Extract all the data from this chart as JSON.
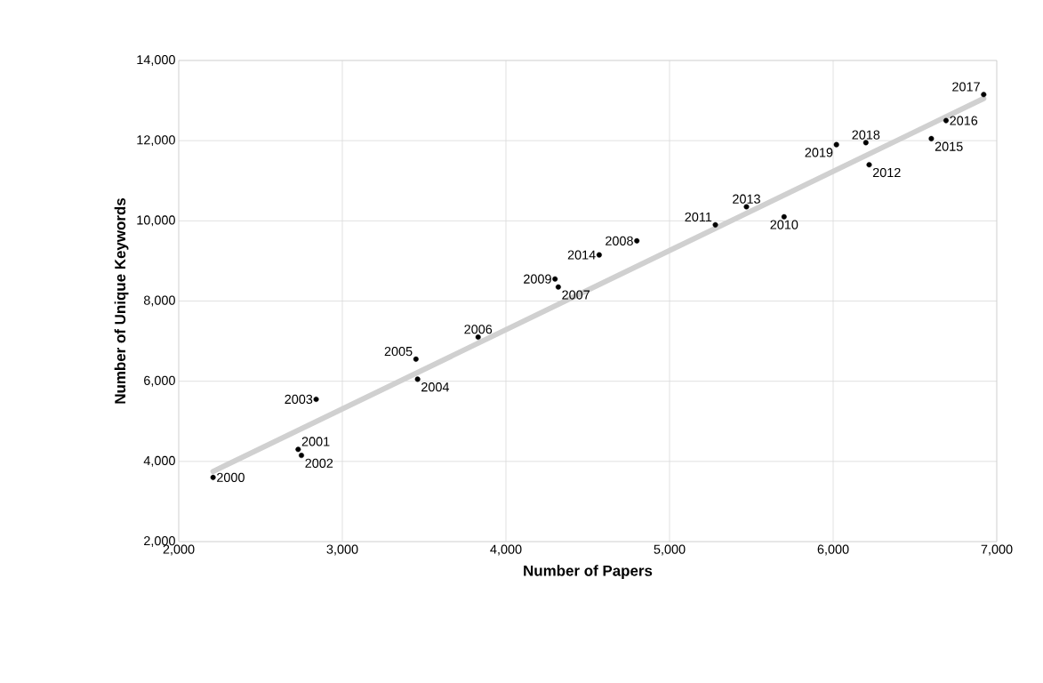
{
  "chart_data": {
    "type": "scatter",
    "xlabel": "Number of Papers",
    "ylabel": "Number of Unique Keywords",
    "xlim": [
      2000,
      7000
    ],
    "ylim": [
      2000,
      14000
    ],
    "xticks": [
      {
        "value": 2000,
        "label": "2,000"
      },
      {
        "value": 3000,
        "label": "3,000"
      },
      {
        "value": 4000,
        "label": "4,000"
      },
      {
        "value": 5000,
        "label": "5,000"
      },
      {
        "value": 6000,
        "label": "6,000"
      },
      {
        "value": 7000,
        "label": "7,000"
      }
    ],
    "yticks": [
      {
        "value": 2000,
        "label": "2,000"
      },
      {
        "value": 4000,
        "label": "4,000"
      },
      {
        "value": 6000,
        "label": "6,000"
      },
      {
        "value": 8000,
        "label": "8,000"
      },
      {
        "value": 10000,
        "label": "10,000"
      },
      {
        "value": 12000,
        "label": "12,000"
      },
      {
        "value": 14000,
        "label": "14,000"
      }
    ],
    "grid": true,
    "marker": "circle",
    "series": [
      {
        "type": "line",
        "marker": "none",
        "color": "#d0d0d0",
        "x": [
          2210,
          6920
        ],
        "values": [
          3750,
          13050
        ]
      },
      {
        "color": "#000000",
        "x": [
          2210,
          2730,
          2750,
          2840,
          3460,
          3450,
          3830,
          4320,
          4800,
          4300,
          5700,
          5280,
          6220,
          5470,
          4570,
          6600,
          6690,
          6920,
          6200,
          6020
        ],
        "values": [
          3600,
          4300,
          4150,
          5550,
          6050,
          6550,
          7100,
          8350,
          9500,
          8550,
          10100,
          9900,
          11400,
          10350,
          9150,
          12050,
          12500,
          13150,
          11950,
          11900
        ]
      }
    ],
    "annotations": [
      {
        "text": "2000",
        "x": 2210,
        "y": 3600
      },
      {
        "text": "2001",
        "x": 2730,
        "y": 4300
      },
      {
        "text": "2002",
        "x": 2750,
        "y": 4150
      },
      {
        "text": "2003",
        "x": 2840,
        "y": 5550
      },
      {
        "text": "2004",
        "x": 3460,
        "y": 6050
      },
      {
        "text": "2005",
        "x": 3450,
        "y": 6550
      },
      {
        "text": "2006",
        "x": 3830,
        "y": 7100
      },
      {
        "text": "2007",
        "x": 4320,
        "y": 8350
      },
      {
        "text": "2008",
        "x": 4800,
        "y": 9500
      },
      {
        "text": "2009",
        "x": 4300,
        "y": 8550
      },
      {
        "text": "2010",
        "x": 5700,
        "y": 10100
      },
      {
        "text": "2011",
        "x": 5280,
        "y": 9900
      },
      {
        "text": "2012",
        "x": 6220,
        "y": 11400
      },
      {
        "text": "2013",
        "x": 5470,
        "y": 10350
      },
      {
        "text": "2014",
        "x": 4570,
        "y": 9150
      },
      {
        "text": "2015",
        "x": 6600,
        "y": 12050
      },
      {
        "text": "2016",
        "x": 6690,
        "y": 12500
      },
      {
        "text": "2017",
        "x": 6920,
        "y": 13150
      },
      {
        "text": "2018",
        "x": 6200,
        "y": 11950
      },
      {
        "text": "2019",
        "x": 6020,
        "y": 11900
      }
    ]
  }
}
